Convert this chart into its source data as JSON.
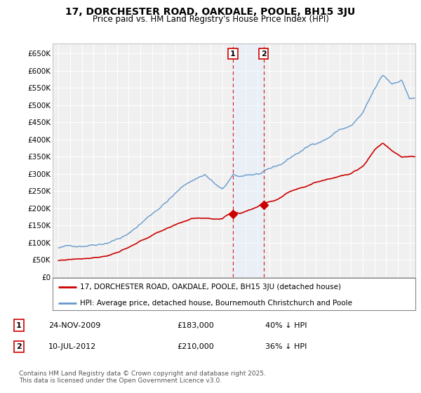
{
  "title": "17, DORCHESTER ROAD, OAKDALE, POOLE, BH15 3JU",
  "subtitle": "Price paid vs. HM Land Registry's House Price Index (HPI)",
  "legend_label_red": "17, DORCHESTER ROAD, OAKDALE, POOLE, BH15 3JU (detached house)",
  "legend_label_blue": "HPI: Average price, detached house, Bournemouth Christchurch and Poole",
  "transaction1_date": "24-NOV-2009",
  "transaction1_price": "£183,000",
  "transaction1_hpi": "40% ↓ HPI",
  "transaction2_date": "10-JUL-2012",
  "transaction2_price": "£210,000",
  "transaction2_hpi": "36% ↓ HPI",
  "marker1_x": 2009.9,
  "marker1_y": 183000,
  "marker2_x": 2012.53,
  "marker2_y": 210000,
  "vline1_x": 2009.9,
  "vline2_x": 2012.53,
  "ylabel_ticks": [
    "£0",
    "£50K",
    "£100K",
    "£150K",
    "£200K",
    "£250K",
    "£300K",
    "£350K",
    "£400K",
    "£450K",
    "£500K",
    "£550K",
    "£600K",
    "£650K"
  ],
  "ytick_values": [
    0,
    50000,
    100000,
    150000,
    200000,
    250000,
    300000,
    350000,
    400000,
    450000,
    500000,
    550000,
    600000,
    650000
  ],
  "ylim": [
    0,
    680000
  ],
  "xlim_start": 1994.5,
  "xlim_end": 2025.5,
  "footer": "Contains HM Land Registry data © Crown copyright and database right 2025.\nThis data is licensed under the Open Government Licence v3.0.",
  "bg_color": "#ffffff",
  "plot_bg_color": "#f0f0f0",
  "grid_color": "#ffffff",
  "red_color": "#cc0000",
  "blue_color": "#6699cc",
  "span_color": "#ddeeff"
}
